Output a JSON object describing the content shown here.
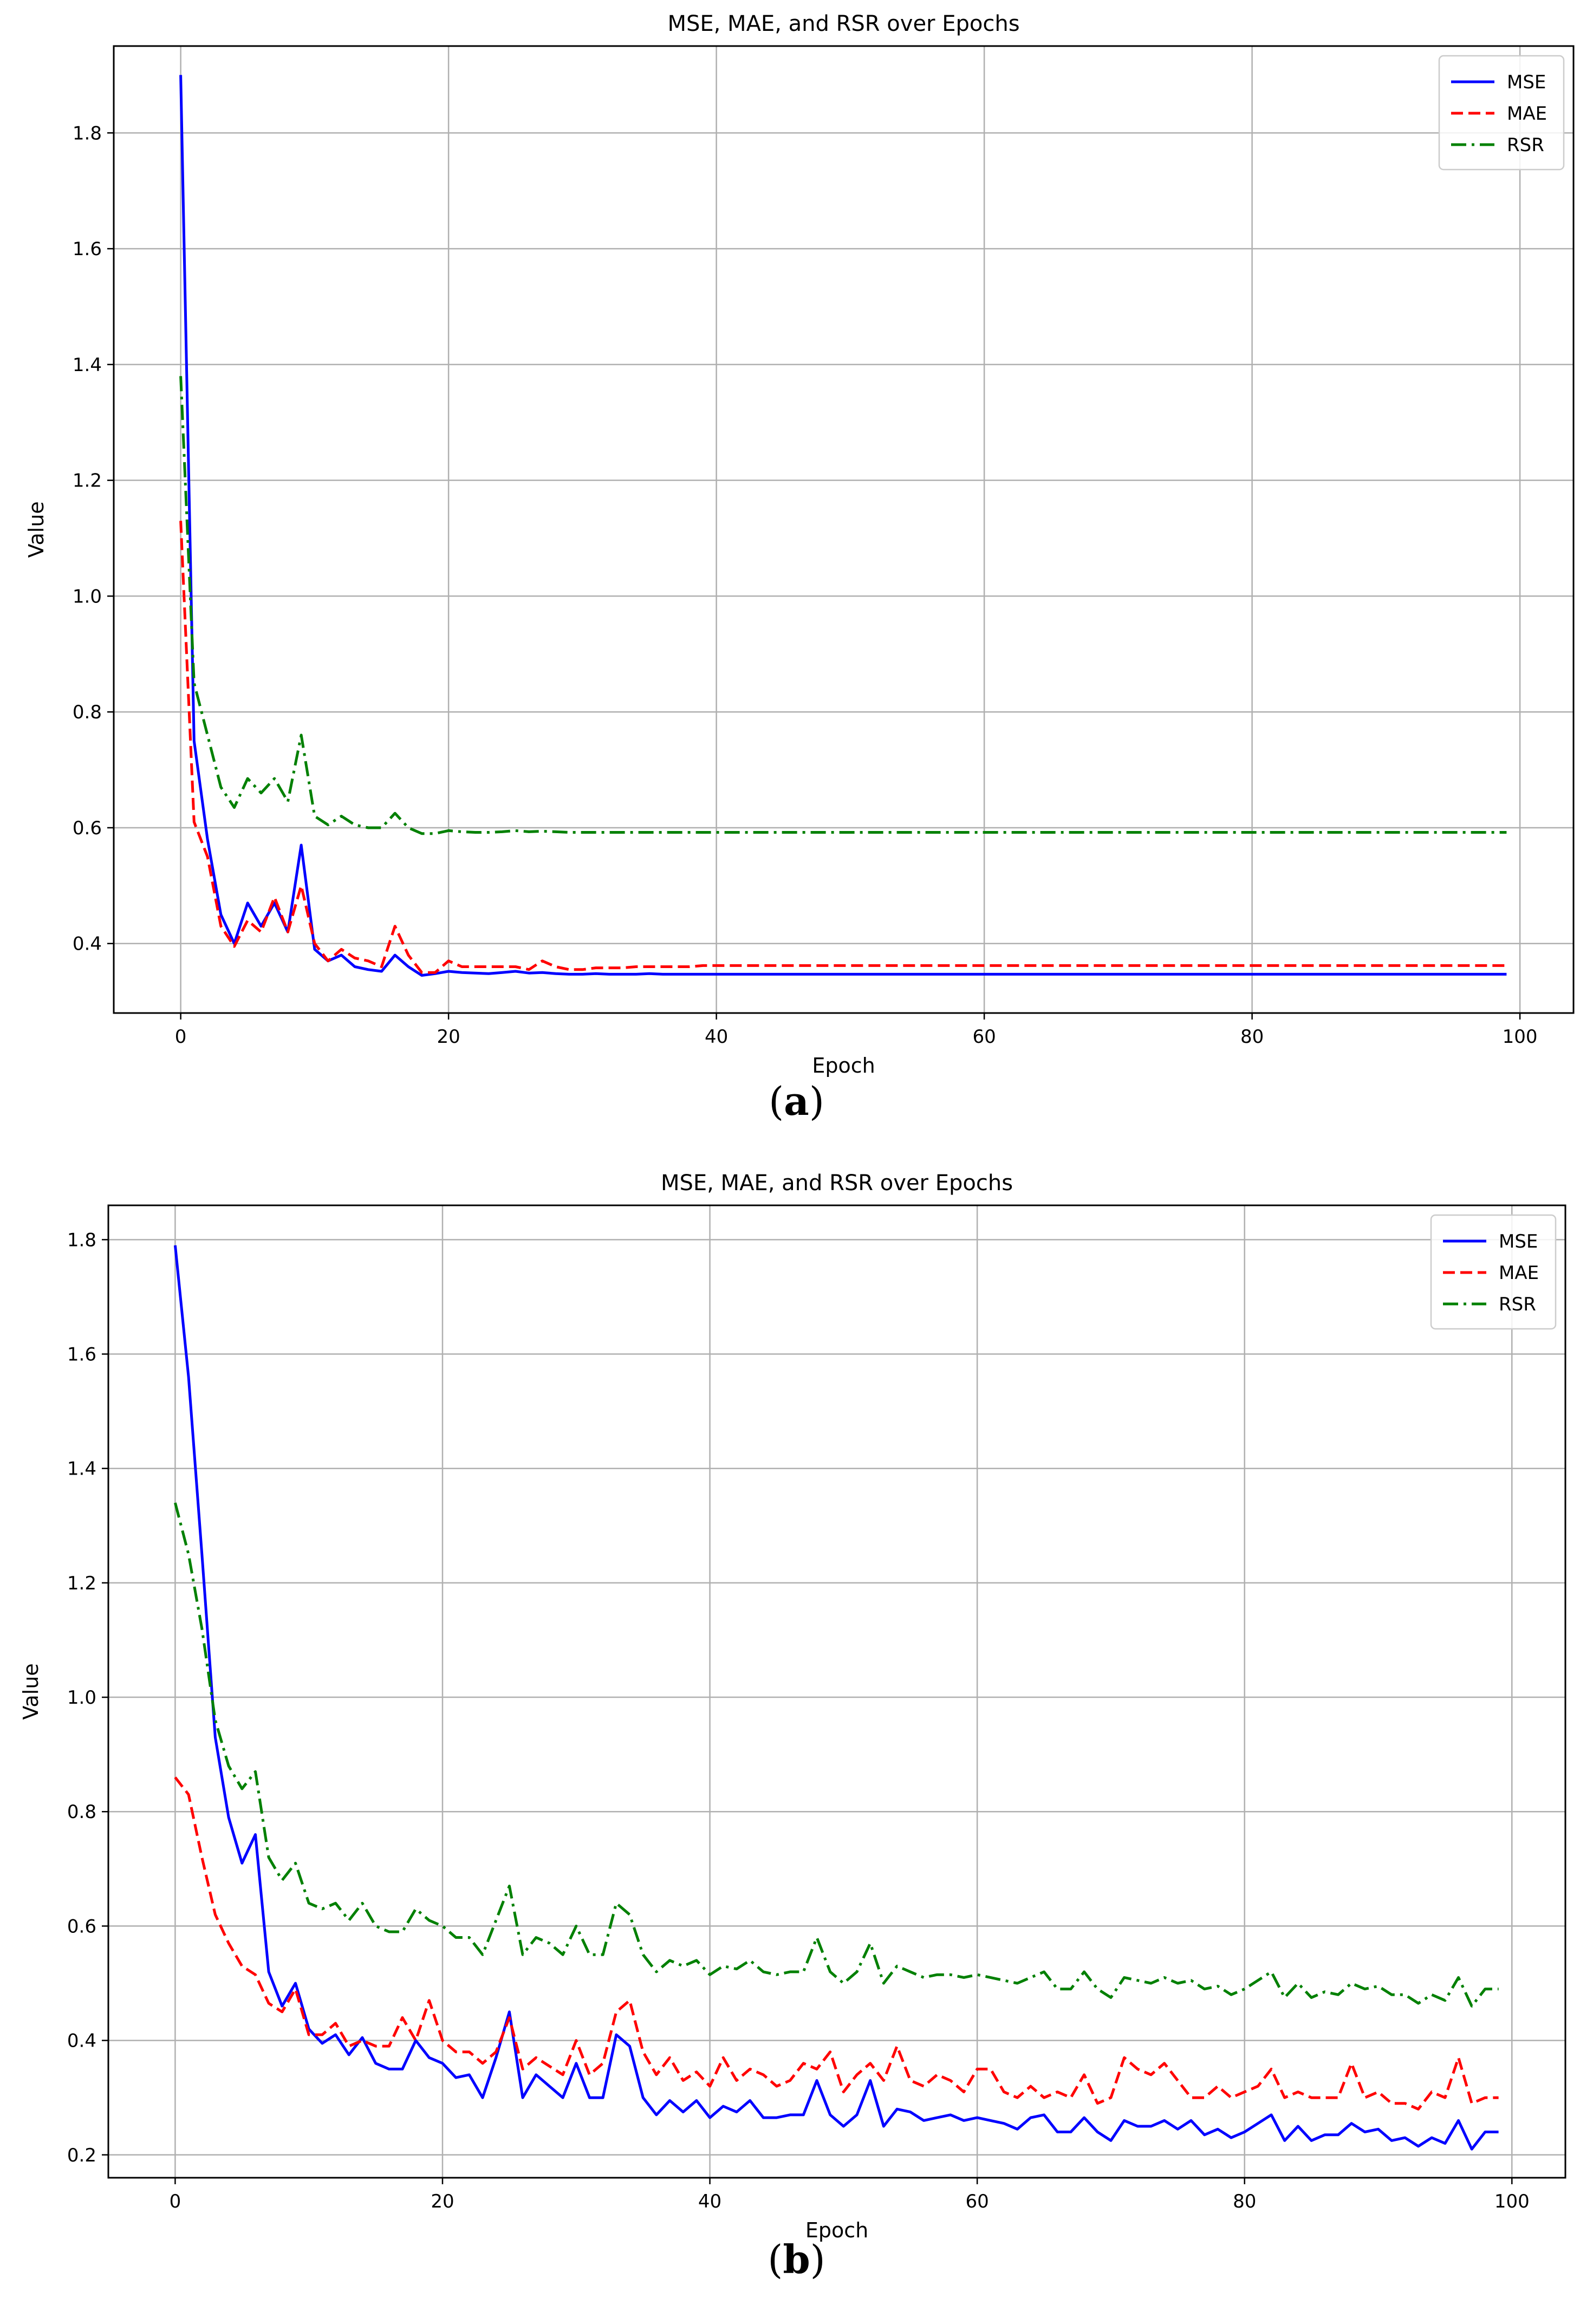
{
  "captions": {
    "a": "a",
    "b": "b"
  },
  "colors": {
    "MSE": "#0000ff",
    "MAE": "#ff0000",
    "RSR": "#008000",
    "grid": "#b0b0b0"
  },
  "chart_data": [
    {
      "type": "line",
      "title": "MSE, MAE, and RSR over Epochs",
      "xlabel": "Epoch",
      "ylabel": "Value",
      "xlim": [
        -5,
        104
      ],
      "ylim": [
        0.28,
        1.95
      ],
      "xticks": [
        0,
        20,
        40,
        60,
        80,
        100
      ],
      "yticks": [
        0.4,
        0.6,
        0.8,
        1.0,
        1.2,
        1.4,
        1.6,
        1.8
      ],
      "ytick_labels": [
        "0.4",
        "0.6",
        "0.8",
        "1.0",
        "1.2",
        "1.4",
        "1.6",
        "1.8"
      ],
      "grid": true,
      "legend_position": "top-right",
      "series": [
        {
          "name": "MSE",
          "style": "solid",
          "values": [
            1.9,
            0.75,
            0.58,
            0.45,
            0.4,
            0.47,
            0.43,
            0.47,
            0.42,
            0.57,
            0.39,
            0.37,
            0.38,
            0.36,
            0.355,
            0.352,
            0.38,
            0.36,
            0.345,
            0.348,
            0.352,
            0.35,
            0.349,
            0.348,
            0.35,
            0.352,
            0.349,
            0.35,
            0.348,
            0.347,
            0.347,
            0.348,
            0.347,
            0.347,
            0.347,
            0.348,
            0.347,
            0.347,
            0.347,
            0.347,
            0.347,
            0.347,
            0.347,
            0.347,
            0.347,
            0.347,
            0.347,
            0.347,
            0.347,
            0.347,
            0.347,
            0.347,
            0.347,
            0.347,
            0.347,
            0.347,
            0.347,
            0.347,
            0.347,
            0.347,
            0.347,
            0.347,
            0.347,
            0.347,
            0.347,
            0.347,
            0.347,
            0.347,
            0.347,
            0.347,
            0.347,
            0.347,
            0.347,
            0.347,
            0.347,
            0.347,
            0.347,
            0.347,
            0.347,
            0.347,
            0.347,
            0.347,
            0.347,
            0.347,
            0.347,
            0.347,
            0.347,
            0.347,
            0.347,
            0.347,
            0.347,
            0.347,
            0.347,
            0.347,
            0.347,
            0.347,
            0.347,
            0.347,
            0.347,
            0.347
          ]
        },
        {
          "name": "MAE",
          "style": "dashed",
          "values": [
            1.13,
            0.61,
            0.55,
            0.43,
            0.395,
            0.44,
            0.42,
            0.48,
            0.42,
            0.5,
            0.4,
            0.37,
            0.39,
            0.375,
            0.37,
            0.36,
            0.43,
            0.38,
            0.35,
            0.35,
            0.37,
            0.36,
            0.36,
            0.36,
            0.36,
            0.36,
            0.355,
            0.37,
            0.36,
            0.355,
            0.355,
            0.358,
            0.358,
            0.358,
            0.36,
            0.36,
            0.36,
            0.36,
            0.36,
            0.362,
            0.362,
            0.362,
            0.362,
            0.362,
            0.362,
            0.362,
            0.362,
            0.362,
            0.362,
            0.362,
            0.362,
            0.362,
            0.362,
            0.362,
            0.362,
            0.362,
            0.362,
            0.362,
            0.362,
            0.362,
            0.362,
            0.362,
            0.362,
            0.362,
            0.362,
            0.362,
            0.362,
            0.362,
            0.362,
            0.362,
            0.362,
            0.362,
            0.362,
            0.362,
            0.362,
            0.362,
            0.362,
            0.362,
            0.362,
            0.362,
            0.362,
            0.362,
            0.362,
            0.362,
            0.362,
            0.362,
            0.362,
            0.362,
            0.362,
            0.362,
            0.362,
            0.362,
            0.362,
            0.362,
            0.362,
            0.362,
            0.362,
            0.362,
            0.362,
            0.362
          ]
        },
        {
          "name": "RSR",
          "style": "dashdot",
          "values": [
            1.38,
            0.85,
            0.76,
            0.67,
            0.635,
            0.685,
            0.66,
            0.685,
            0.645,
            0.76,
            0.62,
            0.605,
            0.62,
            0.605,
            0.6,
            0.6,
            0.625,
            0.6,
            0.59,
            0.59,
            0.595,
            0.593,
            0.592,
            0.592,
            0.593,
            0.595,
            0.593,
            0.594,
            0.593,
            0.592,
            0.592,
            0.592,
            0.592,
            0.592,
            0.592,
            0.592,
            0.592,
            0.592,
            0.592,
            0.592,
            0.592,
            0.592,
            0.592,
            0.592,
            0.592,
            0.592,
            0.592,
            0.592,
            0.592,
            0.592,
            0.592,
            0.592,
            0.592,
            0.592,
            0.592,
            0.592,
            0.592,
            0.592,
            0.592,
            0.592,
            0.592,
            0.592,
            0.592,
            0.592,
            0.592,
            0.592,
            0.592,
            0.592,
            0.592,
            0.592,
            0.592,
            0.592,
            0.592,
            0.592,
            0.592,
            0.592,
            0.592,
            0.592,
            0.592,
            0.592,
            0.592,
            0.592,
            0.592,
            0.592,
            0.592,
            0.592,
            0.592,
            0.592,
            0.592,
            0.592,
            0.592,
            0.592,
            0.592,
            0.592,
            0.592,
            0.592,
            0.592,
            0.592,
            0.592,
            0.592
          ]
        }
      ]
    },
    {
      "type": "line",
      "title": "MSE, MAE, and RSR over Epochs",
      "xlabel": "Epoch",
      "ylabel": "Value",
      "xlim": [
        -5,
        104
      ],
      "ylim": [
        0.16,
        1.86
      ],
      "xticks": [
        0,
        20,
        40,
        60,
        80,
        100
      ],
      "yticks": [
        0.2,
        0.4,
        0.6,
        0.8,
        1.0,
        1.2,
        1.4,
        1.6,
        1.8
      ],
      "ytick_labels": [
        "0.2",
        "0.4",
        "0.6",
        "0.8",
        "1.0",
        "1.2",
        "1.4",
        "1.6",
        "1.8"
      ],
      "grid": true,
      "legend_position": "top-right",
      "series": [
        {
          "name": "MSE",
          "style": "solid",
          "values": [
            1.79,
            1.56,
            1.25,
            0.93,
            0.79,
            0.71,
            0.76,
            0.52,
            0.46,
            0.5,
            0.42,
            0.395,
            0.41,
            0.375,
            0.405,
            0.36,
            0.35,
            0.35,
            0.4,
            0.37,
            0.36,
            0.335,
            0.34,
            0.3,
            0.37,
            0.45,
            0.3,
            0.34,
            0.32,
            0.3,
            0.36,
            0.3,
            0.3,
            0.41,
            0.39,
            0.3,
            0.27,
            0.295,
            0.275,
            0.295,
            0.265,
            0.285,
            0.275,
            0.295,
            0.265,
            0.265,
            0.27,
            0.27,
            0.33,
            0.27,
            0.25,
            0.27,
            0.33,
            0.25,
            0.28,
            0.275,
            0.26,
            0.265,
            0.27,
            0.26,
            0.265,
            0.26,
            0.255,
            0.245,
            0.265,
            0.27,
            0.24,
            0.24,
            0.265,
            0.24,
            0.225,
            0.26,
            0.25,
            0.25,
            0.26,
            0.245,
            0.26,
            0.235,
            0.245,
            0.23,
            0.24,
            0.255,
            0.27,
            0.225,
            0.25,
            0.225,
            0.235,
            0.235,
            0.255,
            0.24,
            0.245,
            0.225,
            0.23,
            0.215,
            0.23,
            0.22,
            0.26,
            0.21,
            0.24,
            0.24
          ]
        },
        {
          "name": "MAE",
          "style": "dashed",
          "values": [
            0.86,
            0.83,
            0.72,
            0.62,
            0.57,
            0.53,
            0.515,
            0.465,
            0.45,
            0.49,
            0.41,
            0.41,
            0.43,
            0.39,
            0.4,
            0.39,
            0.39,
            0.44,
            0.4,
            0.47,
            0.4,
            0.38,
            0.38,
            0.36,
            0.38,
            0.44,
            0.35,
            0.37,
            0.355,
            0.34,
            0.4,
            0.34,
            0.36,
            0.45,
            0.47,
            0.38,
            0.34,
            0.37,
            0.33,
            0.345,
            0.32,
            0.37,
            0.33,
            0.35,
            0.34,
            0.32,
            0.33,
            0.36,
            0.35,
            0.38,
            0.31,
            0.34,
            0.36,
            0.33,
            0.39,
            0.33,
            0.32,
            0.34,
            0.33,
            0.31,
            0.35,
            0.35,
            0.31,
            0.3,
            0.32,
            0.3,
            0.31,
            0.3,
            0.34,
            0.29,
            0.3,
            0.37,
            0.35,
            0.34,
            0.36,
            0.33,
            0.3,
            0.3,
            0.32,
            0.3,
            0.31,
            0.32,
            0.35,
            0.3,
            0.31,
            0.3,
            0.3,
            0.3,
            0.36,
            0.3,
            0.31,
            0.29,
            0.29,
            0.28,
            0.31,
            0.3,
            0.37,
            0.29,
            0.3,
            0.3
          ]
        },
        {
          "name": "RSR",
          "style": "dashdot",
          "values": [
            1.34,
            1.25,
            1.12,
            0.96,
            0.88,
            0.84,
            0.87,
            0.72,
            0.68,
            0.71,
            0.64,
            0.63,
            0.64,
            0.61,
            0.64,
            0.6,
            0.59,
            0.59,
            0.63,
            0.61,
            0.6,
            0.58,
            0.58,
            0.55,
            0.61,
            0.67,
            0.55,
            0.58,
            0.57,
            0.55,
            0.6,
            0.55,
            0.55,
            0.64,
            0.62,
            0.55,
            0.52,
            0.54,
            0.53,
            0.54,
            0.515,
            0.53,
            0.525,
            0.54,
            0.52,
            0.515,
            0.52,
            0.52,
            0.58,
            0.52,
            0.5,
            0.52,
            0.57,
            0.5,
            0.53,
            0.52,
            0.51,
            0.515,
            0.515,
            0.51,
            0.515,
            0.51,
            0.505,
            0.5,
            0.51,
            0.52,
            0.49,
            0.49,
            0.52,
            0.49,
            0.475,
            0.51,
            0.505,
            0.5,
            0.51,
            0.5,
            0.505,
            0.49,
            0.495,
            0.48,
            0.49,
            0.505,
            0.52,
            0.475,
            0.5,
            0.475,
            0.485,
            0.48,
            0.5,
            0.49,
            0.495,
            0.48,
            0.48,
            0.465,
            0.48,
            0.47,
            0.51,
            0.46,
            0.49,
            0.49
          ]
        }
      ]
    }
  ]
}
